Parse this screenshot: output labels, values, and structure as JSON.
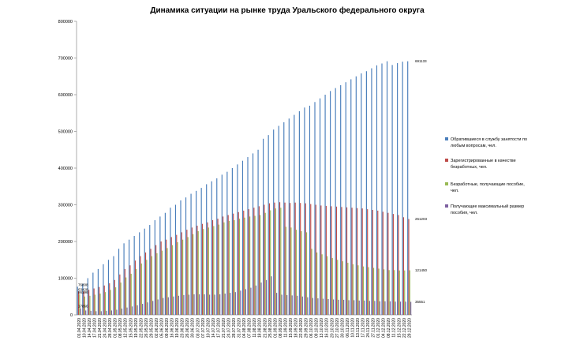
{
  "chart_data": {
    "type": "bar",
    "title": "Динамика ситуации на рынке труда Уральского федерального округа",
    "xlabel": "",
    "ylabel": "",
    "ylim": [
      0,
      800000
    ],
    "yticks": [
      "0",
      "100000",
      "200000",
      "300000",
      "400000",
      "500000",
      "600000",
      "700000",
      "800000"
    ],
    "grid": false,
    "legend_position": "right",
    "categories": [
      "01.04.2020",
      "10.04.2020",
      "14.04.2020",
      "17.04.2020",
      "21.04.2020",
      "24.04.2020",
      "28.04.2020",
      "01.05.2020",
      "08.05.2020",
      "12.05.2020",
      "15.05.2020",
      "19.05.2020",
      "22.05.2020",
      "26.05.2020",
      "29.05.2020",
      "02.06.2020",
      "05.06.2020",
      "09.06.2020",
      "16.06.2020",
      "19.06.2020",
      "23.06.2020",
      "26.06.2020",
      "30.06.2020",
      "03.07.2020",
      "07.07.2020",
      "10.07.2020",
      "14.07.2020",
      "17.07.2020",
      "21.07.2020",
      "24.07.2020",
      "28.07.2020",
      "31.07.2020",
      "04.08.2020",
      "07.08.2020",
      "11.08.2020",
      "18.08.2020",
      "21.08.2020",
      "25.08.2020",
      "01.09.2020",
      "08.09.2020",
      "11.09.2020",
      "15.09.2020",
      "18.09.2020",
      "22.09.2020",
      "29.09.2020",
      "06.10.2020",
      "09.10.2020",
      "13.10.2020",
      "16.10.2020",
      "20.10.2020",
      "27.10.2020",
      "30.10.2020",
      "06.11.2020",
      "10.11.2020",
      "13.11.2020",
      "17.11.2020",
      "24.11.2020",
      "27.11.2020",
      "01.12.2020",
      "04.12.2020",
      "08.12.2020",
      "11.12.2020",
      "15.12.2020",
      "22.12.2020",
      "29.12.2020"
    ],
    "series": [
      {
        "name": "Обратившиеся в службу занятости по любым вопросам, чел.",
        "color": "#4a7ebb",
        "values": [
          76808,
          85000,
          100000,
          115000,
          125000,
          138000,
          150000,
          160000,
          180000,
          195000,
          205000,
          215000,
          225000,
          235000,
          245000,
          258000,
          268000,
          278000,
          292000,
          300000,
          312000,
          320000,
          330000,
          338000,
          346000,
          356000,
          364000,
          372000,
          382000,
          390000,
          400000,
          410000,
          420000,
          430000,
          440000,
          450000,
          480000,
          490000,
          505000,
          515000,
          525000,
          535000,
          545000,
          555000,
          565000,
          570000,
          580000,
          590000,
          600000,
          610000,
          618000,
          626000,
          634000,
          642000,
          650000,
          658000,
          664000,
          672000,
          680000,
          685000,
          691133,
          681000,
          686000,
          690000,
          691133
        ]
      },
      {
        "name": "Зарегистрированные в качестве безработных, чел.",
        "color": "#be4b48",
        "values": [
          63428,
          63428,
          68000,
          72000,
          76000,
          80000,
          86000,
          95000,
          110000,
          125000,
          135000,
          148000,
          160000,
          170000,
          180000,
          190000,
          200000,
          205000,
          212000,
          218000,
          225000,
          232000,
          238000,
          243000,
          248000,
          252000,
          258000,
          262000,
          268000,
          272000,
          276000,
          280000,
          284000,
          288000,
          292000,
          296000,
          300000,
          304000,
          306000,
          307000,
          306000,
          305000,
          306000,
          305000,
          304000,
          302000,
          300000,
          298000,
          297000,
          296000,
          295000,
          294000,
          293000,
          292000,
          291000,
          290000,
          288000,
          286000,
          284000,
          281000,
          278000,
          275000,
          272000,
          266000,
          261203
        ]
      },
      {
        "name": "Безработные, получающие пособие, чел.",
        "color": "#98b954",
        "values": [
          56196,
          50000,
          52000,
          55000,
          58000,
          62000,
          68000,
          75000,
          88000,
          102000,
          112000,
          125000,
          140000,
          150000,
          160000,
          168000,
          175000,
          182000,
          190000,
          198000,
          205000,
          212000,
          220000,
          228000,
          234000,
          238000,
          242000,
          246000,
          252000,
          256000,
          258000,
          262000,
          265000,
          268000,
          270000,
          272000,
          278000,
          285000,
          290000,
          292000,
          240000,
          238000,
          232000,
          228000,
          225000,
          180000,
          170000,
          165000,
          160000,
          155000,
          150000,
          146000,
          142000,
          138000,
          135000,
          132000,
          130000,
          128000,
          126000,
          124000,
          122000,
          122000,
          121000,
          121000,
          121450
        ]
      },
      {
        "name": "Получающие максимальный размер пособия, чел.",
        "color": "#7d60a0",
        "values": [
          17866,
          12000,
          11000,
          10000,
          10000,
          11000,
          12000,
          14000,
          17000,
          20000,
          23000,
          26000,
          30000,
          34000,
          38000,
          42000,
          46000,
          48000,
          50000,
          52000,
          54000,
          55000,
          56000,
          56000,
          56000,
          55000,
          55000,
          56000,
          58000,
          60000,
          62000,
          66000,
          70000,
          74000,
          80000,
          88000,
          95000,
          105000,
          60000,
          55000,
          54000,
          53000,
          52000,
          50000,
          48000,
          46000,
          45000,
          44000,
          43000,
          42000,
          41000,
          41000,
          40000,
          40000,
          39000,
          39000,
          38000,
          38000,
          37000,
          37000,
          37000,
          36000,
          36000,
          36000,
          35551
        ]
      }
    ],
    "data_labels": {
      "start": [
        "76808",
        "63428",
        "56196",
        "17866"
      ],
      "end": [
        "691133",
        "261203",
        "121450",
        "35551"
      ]
    }
  }
}
